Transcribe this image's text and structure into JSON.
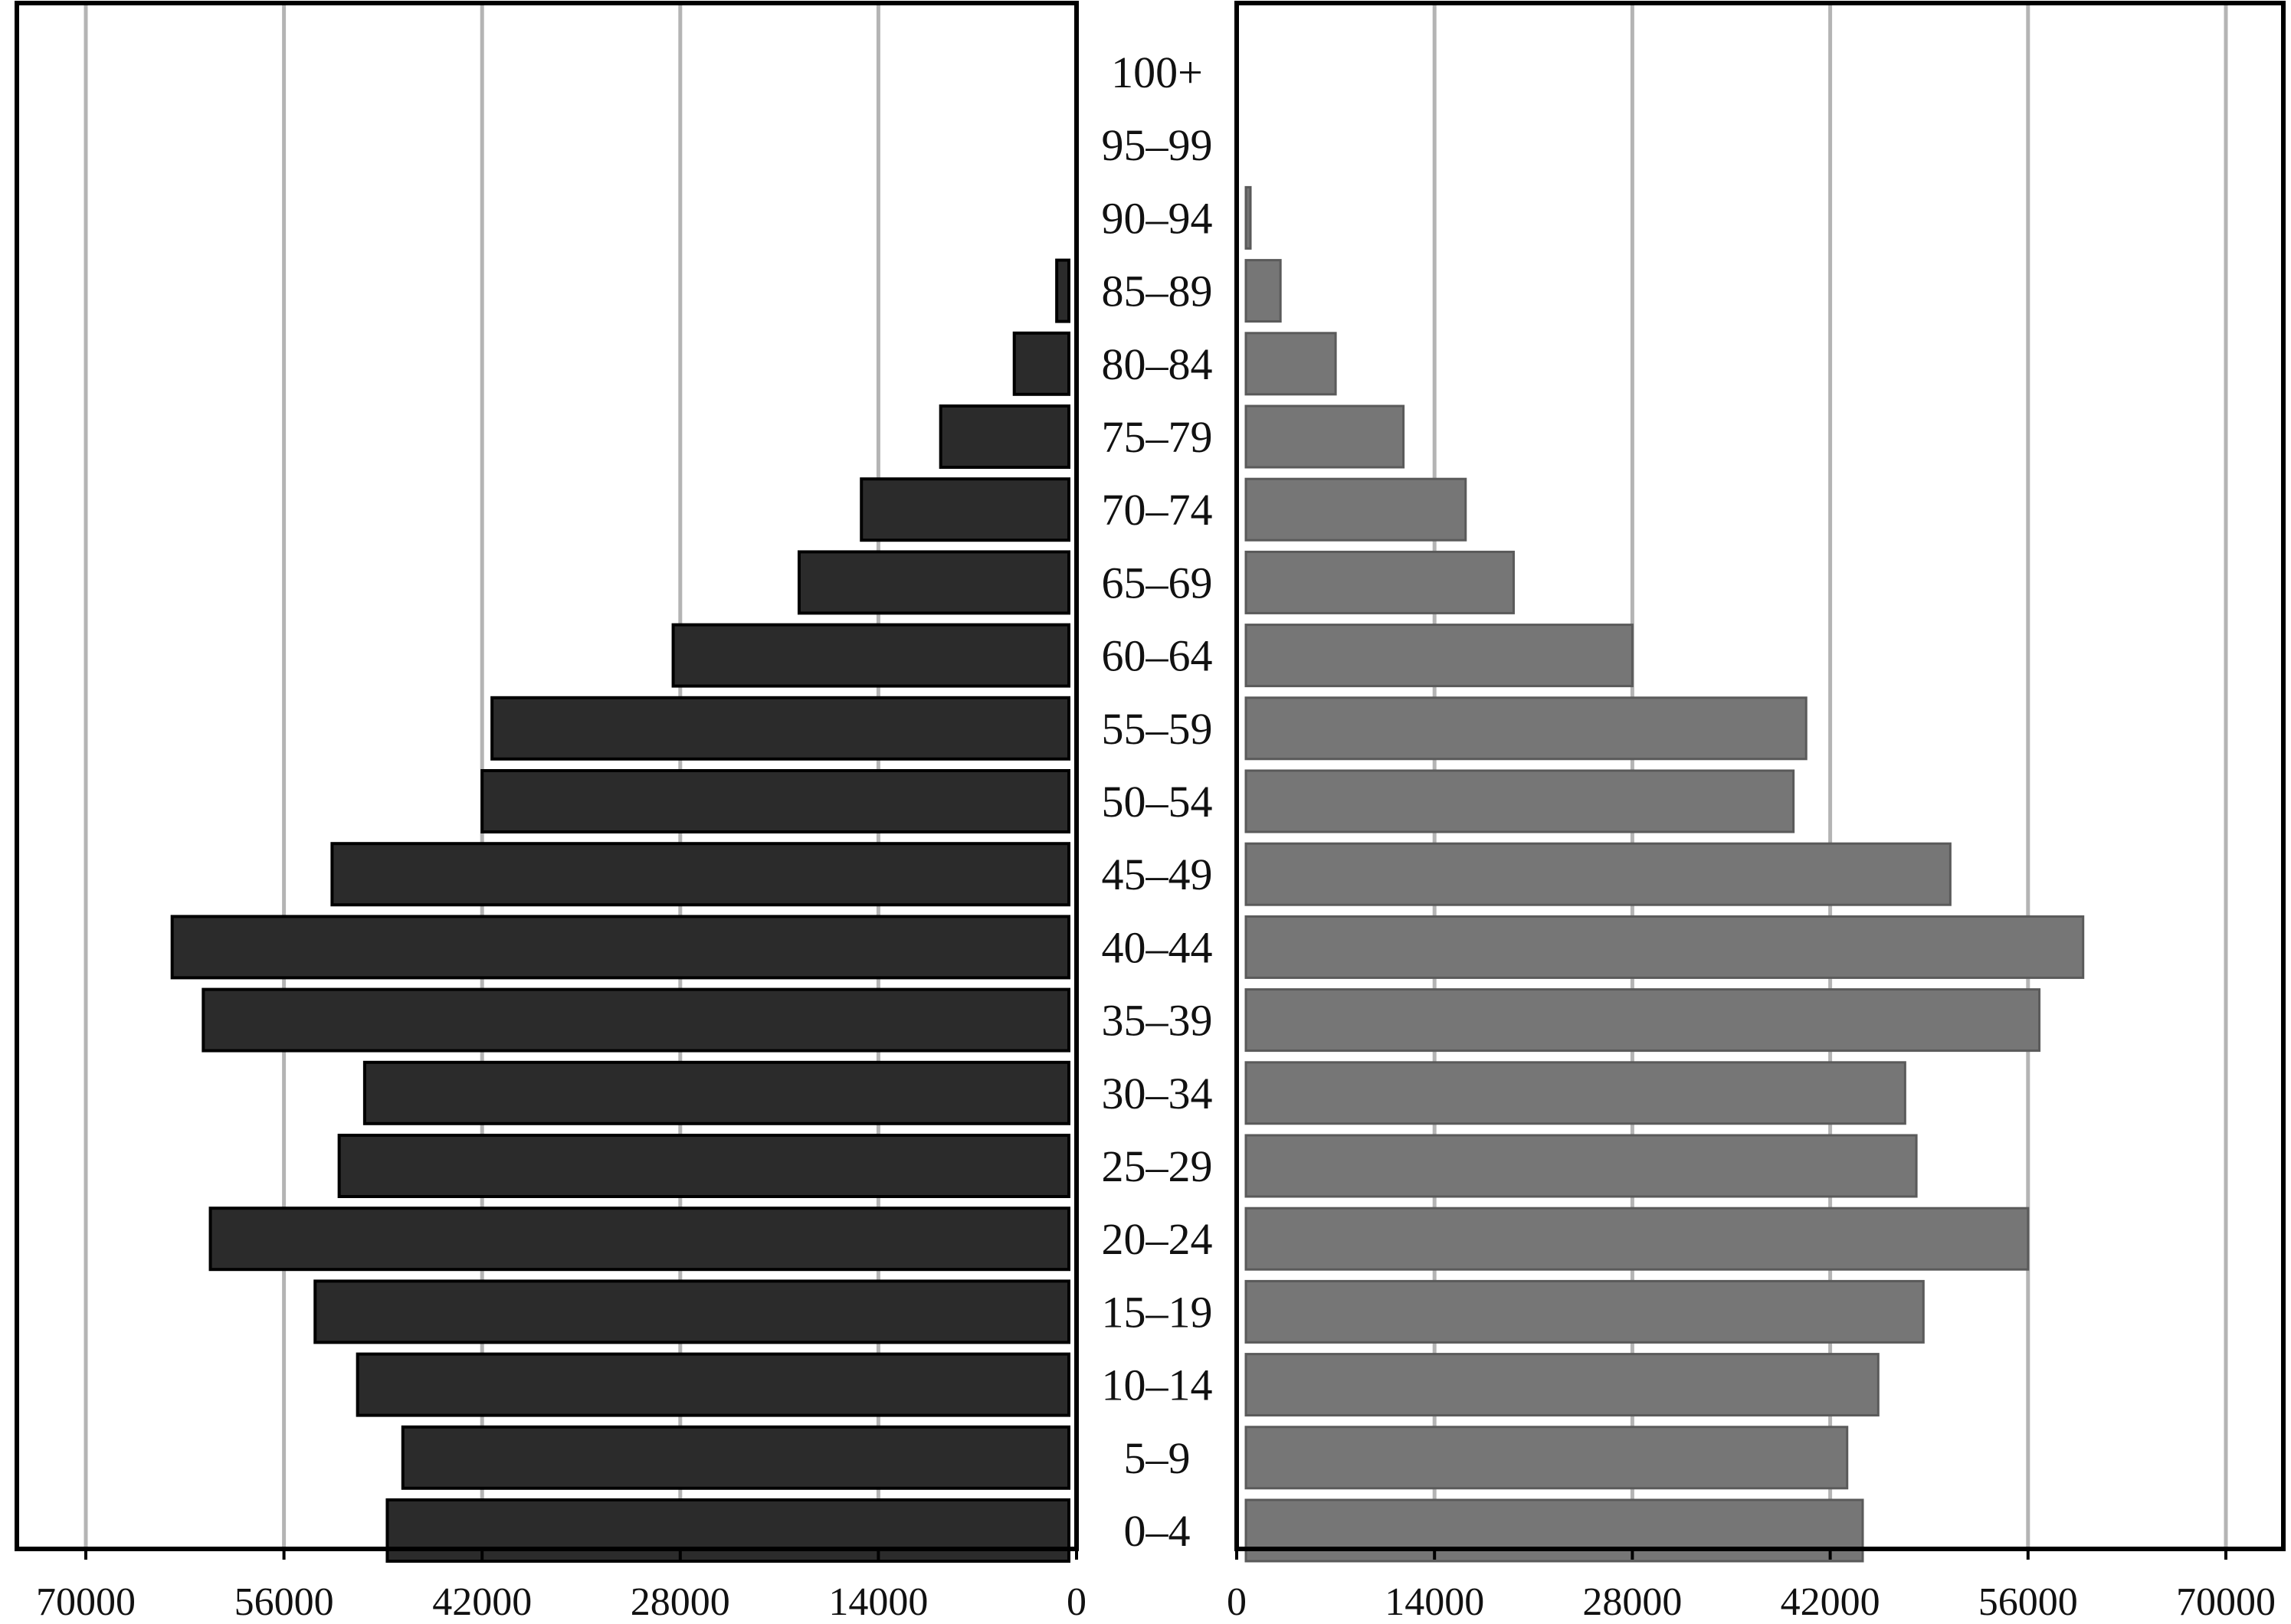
{
  "chart_data": {
    "type": "bar",
    "subtype": "population-pyramid",
    "categories": [
      "0–4",
      "5–9",
      "10–14",
      "15–19",
      "20–24",
      "25–29",
      "30–34",
      "35–39",
      "40–44",
      "45–49",
      "50–54",
      "55–59",
      "60–64",
      "65–69",
      "70–74",
      "75–79",
      "80–84",
      "85–89",
      "90–94",
      "95–99",
      "100+"
    ],
    "series": [
      {
        "side": "left",
        "color": "#2b2b2b",
        "values": [
          48700,
          47600,
          50800,
          53800,
          61200,
          52100,
          50300,
          61700,
          63900,
          52600,
          42000,
          41300,
          28500,
          19600,
          15200,
          9600,
          4400,
          1400,
          0,
          0,
          0
        ]
      },
      {
        "side": "right",
        "color": "#767676",
        "values": [
          44300,
          43200,
          45400,
          48600,
          56000,
          48100,
          47300,
          56800,
          59900,
          50500,
          39400,
          40300,
          28000,
          19600,
          16200,
          11800,
          7000,
          3100,
          500,
          0,
          0
        ]
      }
    ],
    "xlim": [
      0,
      70000
    ],
    "xticks": [
      "0",
      "14000",
      "28000",
      "42000",
      "56000",
      "70000"
    ],
    "gridlines": true,
    "gridline_color": "#b4b4b4",
    "frame_color": "#000000",
    "title": "",
    "xlabel": "",
    "ylabel": ""
  }
}
